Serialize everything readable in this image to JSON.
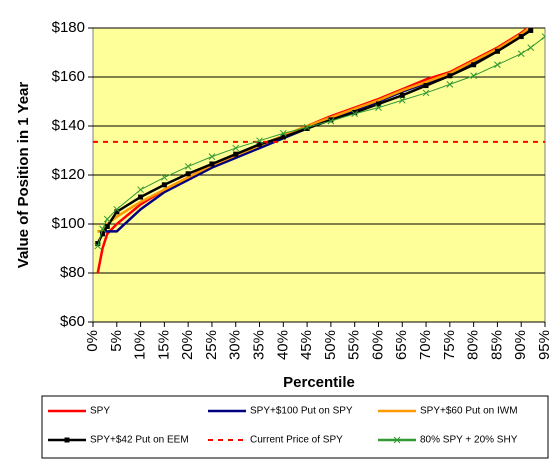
{
  "chart_data": {
    "type": "line",
    "y_axis_label": "Value of Position in 1 Year",
    "x_axis_label": "Percentile",
    "x": [
      0,
      1,
      2,
      3,
      5,
      10,
      15,
      20,
      25,
      30,
      35,
      40,
      45,
      50,
      55,
      60,
      65,
      70,
      75,
      80,
      85,
      90,
      92,
      95
    ],
    "series": [
      {
        "name": "SPY",
        "color": "#ff0000",
        "values": [
          null,
          80,
          90,
          96,
          100,
          108,
          114,
          119,
          124,
          128,
          132,
          136,
          140,
          144,
          147.5,
          151,
          155,
          159,
          162,
          167,
          172,
          178,
          181,
          null
        ]
      },
      {
        "name": "SPY+$100 Put on SPY",
        "color": "#000080",
        "values": [
          null,
          97,
          97,
          97,
          97,
          106,
          113,
          118,
          123,
          127,
          131,
          135,
          139,
          143,
          146.5,
          150,
          154,
          157.5,
          161,
          166,
          171,
          177,
          180,
          null
        ]
      },
      {
        "name": "SPY+$60 Put on IWM",
        "color": "#ff9900",
        "values": [
          null,
          97,
          97,
          100,
          103,
          109,
          114,
          119,
          124,
          128,
          132,
          136,
          140,
          143.5,
          147,
          150.5,
          154.5,
          158,
          161.5,
          166.5,
          171.5,
          177.5,
          180.5,
          null
        ]
      },
      {
        "name": "SPY+$42 Put on EEM",
        "color": "#000000",
        "marker": "square",
        "values": [
          null,
          92,
          96,
          99,
          105,
          111,
          116,
          120.5,
          124.5,
          128.5,
          132.5,
          135.5,
          139,
          142.5,
          145.5,
          149,
          152.5,
          156.5,
          160.5,
          165,
          170.5,
          176.5,
          179,
          null
        ]
      },
      {
        "name": "Current Price of SPY",
        "color": "#ff0000",
        "dash": true,
        "values": [
          133.5,
          133.5,
          133.5,
          133.5,
          133.5,
          133.5,
          133.5,
          133.5,
          133.5,
          133.5,
          133.5,
          133.5,
          133.5,
          133.5,
          133.5,
          133.5,
          133.5,
          133.5,
          133.5,
          133.5,
          133.5,
          133.5,
          133.5,
          133.5
        ]
      },
      {
        "name": "80% SPY + 20% SHY",
        "color": "#339933",
        "marker": "x",
        "values": [
          null,
          91,
          98,
          102,
          106,
          114,
          119,
          123.5,
          127.5,
          131,
          134,
          137,
          139.5,
          142,
          145,
          147.5,
          150.5,
          153.5,
          157,
          160.5,
          165,
          169.5,
          172,
          176.5
        ]
      }
    ],
    "xlim": [
      0,
      95
    ],
    "xticks": [
      {
        "value": 0,
        "label": "0%"
      },
      {
        "value": 5,
        "label": "5%"
      },
      {
        "value": 10,
        "label": "10%"
      },
      {
        "value": 15,
        "label": "15%"
      },
      {
        "value": 20,
        "label": "20%"
      },
      {
        "value": 25,
        "label": "25%"
      },
      {
        "value": 30,
        "label": "30%"
      },
      {
        "value": 35,
        "label": "35%"
      },
      {
        "value": 40,
        "label": "40%"
      },
      {
        "value": 45,
        "label": "45%"
      },
      {
        "value": 50,
        "label": "50%"
      },
      {
        "value": 55,
        "label": "55%"
      },
      {
        "value": 60,
        "label": "60%"
      },
      {
        "value": 65,
        "label": "65%"
      },
      {
        "value": 70,
        "label": "70%"
      },
      {
        "value": 75,
        "label": "75%"
      },
      {
        "value": 80,
        "label": "80%"
      },
      {
        "value": 85,
        "label": "85%"
      },
      {
        "value": 90,
        "label": "90%"
      },
      {
        "value": 95,
        "label": "95%"
      }
    ],
    "ylim": [
      60,
      180
    ],
    "yticks": [
      {
        "value": 60,
        "label": "$60"
      },
      {
        "value": 80,
        "label": "$80"
      },
      {
        "value": 100,
        "label": "$100"
      },
      {
        "value": 120,
        "label": "$120"
      },
      {
        "value": 140,
        "label": "$140"
      },
      {
        "value": 160,
        "label": "$160"
      },
      {
        "value": 180,
        "label": "$180"
      }
    ],
    "grid": true,
    "legend": "bottom"
  }
}
